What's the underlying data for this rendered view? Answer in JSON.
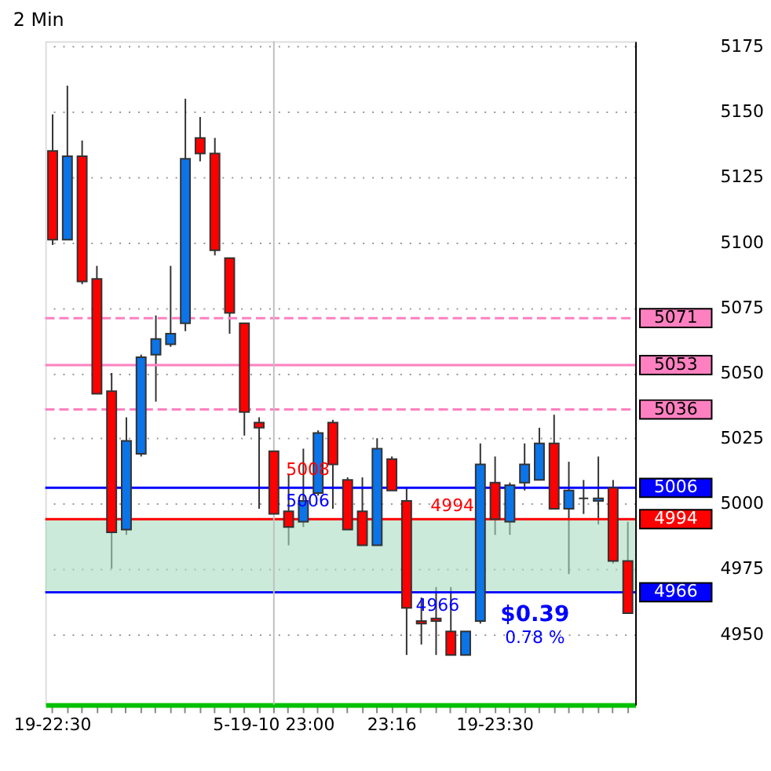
{
  "chart_data": {
    "type": "candlestick",
    "title": "2 Min",
    "categories": [
      "19-22:30",
      null,
      null,
      null,
      null,
      null,
      null,
      null,
      null,
      null,
      null,
      null,
      null,
      null,
      null,
      "5-19-10 23:00",
      null,
      null,
      null,
      null,
      null,
      null,
      null,
      "23:16",
      null,
      null,
      null,
      null,
      null,
      null,
      "19-23:30",
      null,
      null,
      null,
      null,
      null,
      null,
      null,
      null,
      null
    ],
    "ohlc": [
      [
        5135,
        5149,
        5099,
        5101
      ],
      [
        5101,
        5160,
        5101,
        5133
      ],
      [
        5133,
        5139,
        5084,
        5085
      ],
      [
        5086,
        5091,
        5042,
        5042
      ],
      [
        5043,
        5050,
        4975,
        4989
      ],
      [
        4990,
        5033,
        4988,
        5024
      ],
      [
        5019,
        5057,
        5018,
        5056
      ],
      [
        5057,
        5072,
        5039,
        5063
      ],
      [
        5061,
        5091,
        5060,
        5065
      ],
      [
        5069,
        5155,
        5066,
        5132
      ],
      [
        5140,
        5148,
        5131,
        5134
      ],
      [
        5134,
        5140,
        5095,
        5097
      ],
      [
        5094,
        5094,
        5065,
        5073
      ],
      [
        5069,
        5069,
        5026,
        5035
      ],
      [
        5031,
        5033,
        4998,
        5029
      ],
      [
        5020,
        5020,
        4996,
        4996
      ],
      [
        4997,
        5011,
        4984,
        4991
      ],
      [
        4993,
        5021,
        4991,
        5001
      ],
      [
        5004,
        5028,
        5003,
        5027
      ],
      [
        5031,
        5032,
        4998,
        5015
      ],
      [
        5009,
        5010,
        4990,
        4990
      ],
      [
        4997,
        5010,
        4984,
        4984
      ],
      [
        4984,
        5025,
        4984,
        5021
      ],
      [
        5017,
        5018,
        5005,
        5005
      ],
      [
        5001,
        5006,
        4942,
        4960
      ],
      [
        4955,
        4964,
        4946,
        4954
      ],
      [
        4956,
        4968,
        4942,
        4955
      ],
      [
        4951,
        4968,
        4942,
        4942
      ],
      [
        4942,
        4951,
        4942,
        4951
      ],
      [
        4955,
        5023,
        4954,
        5015
      ],
      [
        5008,
        5018,
        4988,
        4994
      ],
      [
        4993,
        5008,
        4988,
        5007
      ],
      [
        5008,
        5023,
        5005,
        5015
      ],
      [
        5009,
        5029,
        5009,
        5023
      ],
      [
        5023,
        5034,
        4998,
        4998
      ],
      [
        4998,
        5016,
        4973,
        5005
      ],
      [
        5002,
        5009,
        4996,
        5002
      ],
      [
        5001,
        5018,
        4992,
        5002
      ],
      [
        5006,
        5009,
        4977,
        4978
      ],
      [
        4978,
        4993,
        4958,
        4958
      ]
    ],
    "colors": [
      "#ff0000",
      "#0a74e8",
      "#ff0000",
      "#ff0000",
      "#ff0000",
      "#0a74e8",
      "#0a74e8",
      "#0a74e8",
      "#0a74e8",
      "#0a74e8",
      "#ff0000",
      "#ff0000",
      "#ff0000",
      "#ff0000",
      "#ff0000",
      "#ff0000",
      "#ff0000",
      "#0a74e8",
      "#0a74e8",
      "#ff0000",
      "#ff0000",
      "#ff0000",
      "#0a74e8",
      "#ff0000",
      "#ff0000",
      "#ff0000",
      "#ff0000",
      "#ff0000",
      "#0a74e8",
      "#0a74e8",
      "#ff0000",
      "#0a74e8",
      "#0a74e8",
      "#0a74e8",
      "#ff0000",
      "#0a74e8",
      "#333333",
      "#0a74e8",
      "#ff0000",
      "#ff0000"
    ],
    "ylim": [
      4923,
      5177
    ],
    "yticks": [
      4950,
      4975,
      5000,
      5025,
      5050,
      5075,
      5100,
      5125,
      5150,
      5175
    ],
    "grid": "y",
    "ref_lines": [
      {
        "axis": "y",
        "value": 5071,
        "label": "5071",
        "color": "#ff80c0",
        "line_style": "dashed"
      },
      {
        "axis": "y",
        "value": 5053,
        "label": "5053",
        "color": "#ff80c0",
        "line_style": "solid"
      },
      {
        "axis": "y",
        "value": 5036,
        "label": "5036",
        "color": "#ff80c0",
        "line_style": "dashed"
      },
      {
        "axis": "y",
        "value": 5006,
        "label": "5006",
        "color": "#0000ff",
        "line_style": "solid"
      },
      {
        "axis": "y",
        "value": 4994,
        "label": "4994",
        "color": "#ff0000",
        "line_style": "solid"
      },
      {
        "axis": "y",
        "value": 4966,
        "label": "4966",
        "color": "#0000ff",
        "line_style": "solid"
      },
      {
        "axis": "x",
        "value": "5-19-10 23:00",
        "color": "#c0c0c0",
        "line_style": "solid"
      }
    ],
    "bands": [
      {
        "axis": "y",
        "from": 4966,
        "to": 4994,
        "color": "#a8dcc0"
      }
    ],
    "annotations": [
      {
        "text": "5008",
        "y": 5008
      },
      {
        "text": "5006",
        "y": 5006
      },
      {
        "text": "4994",
        "y": 4994
      },
      {
        "text": "4966",
        "y": 4966
      },
      "$0.39",
      "0.78 %"
    ]
  }
}
